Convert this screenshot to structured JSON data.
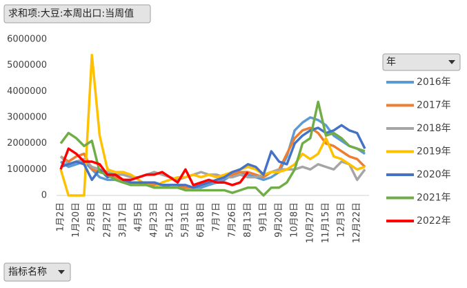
{
  "chart_data": {
    "type": "line",
    "value_field": "求和项:大豆:本周出口:当周值",
    "legend_title": "年",
    "axis_field": "指标名称",
    "categories": [
      "1月2日",
      null,
      "1月20日",
      null,
      "2月8日",
      null,
      "2月27日",
      null,
      "3月17日",
      null,
      "4月5日",
      null,
      "4月23日",
      null,
      "5月12日",
      null,
      "5月31日",
      null,
      "6月18日",
      null,
      "7月7日",
      null,
      "7月26日",
      null,
      "8月13日",
      null,
      "9月1日",
      null,
      "9月20日",
      null,
      "10月8日",
      null,
      "10月27日",
      null,
      "11月15日",
      null,
      "12月3日",
      null,
      "12月22日",
      null
    ],
    "ylim": [
      0,
      6000000
    ],
    "yticks": [
      0,
      1000000,
      2000000,
      3000000,
      4000000,
      5000000,
      6000000
    ],
    "grid": false,
    "legend": "right",
    "series": [
      {
        "name": "2016年",
        "color": "#5b9bd5",
        "values": [
          1300000,
          1100000,
          1200000,
          1300000,
          1000000,
          700000,
          600000,
          600000,
          500000,
          500000,
          500000,
          500000,
          500000,
          400000,
          400000,
          400000,
          300000,
          300000,
          300000,
          400000,
          500000,
          600000,
          800000,
          900000,
          800000,
          700000,
          600000,
          700000,
          900000,
          1500000,
          2500000,
          2800000,
          3000000,
          2900000,
          2700000,
          2300000,
          2100000,
          1900000,
          1800000,
          1600000
        ]
      },
      {
        "name": "2017年",
        "color": "#ed7d31",
        "values": [
          1500000,
          1300000,
          1500000,
          1600000,
          1000000,
          900000,
          800000,
          700000,
          600000,
          500000,
          500000,
          400000,
          400000,
          400000,
          300000,
          300000,
          300000,
          300000,
          400000,
          500000,
          600000,
          700000,
          800000,
          900000,
          900000,
          800000,
          700000,
          900000,
          1000000,
          1600000,
          2200000,
          2500000,
          2600000,
          2400000,
          2000000,
          1900000,
          1700000,
          1500000,
          1400000,
          1100000
        ]
      },
      {
        "name": "2018年",
        "color": "#a5a5a5",
        "values": [
          1500000,
          1200000,
          1300000,
          1400000,
          1100000,
          1000000,
          900000,
          800000,
          800000,
          700000,
          700000,
          800000,
          900000,
          800000,
          700000,
          600000,
          700000,
          800000,
          900000,
          800000,
          800000,
          700000,
          700000,
          800000,
          700000,
          700000,
          800000,
          900000,
          1000000,
          1000000,
          1000000,
          1100000,
          1000000,
          1200000,
          1100000,
          1000000,
          1300000,
          1200000,
          600000,
          1000000
        ]
      },
      {
        "name": "2019年",
        "color": "#ffc000",
        "values": [
          1000000,
          0,
          0,
          0,
          5400000,
          2300000,
          1000000,
          900000,
          900000,
          800000,
          600000,
          400000,
          300000,
          500000,
          600000,
          700000,
          700000,
          800000,
          700000,
          800000,
          700000,
          800000,
          900000,
          1000000,
          1100000,
          1000000,
          800000,
          900000,
          900000,
          1000000,
          1200000,
          1600000,
          1400000,
          1600000,
          2200000,
          1500000,
          1400000,
          1200000,
          1000000,
          1100000
        ]
      },
      {
        "name": "2020年",
        "color": "#4472c4",
        "values": [
          1100000,
          1200000,
          1300000,
          1200000,
          600000,
          1000000,
          700000,
          800000,
          600000,
          500000,
          500000,
          500000,
          500000,
          400000,
          400000,
          400000,
          400000,
          300000,
          400000,
          500000,
          600000,
          700000,
          900000,
          1000000,
          1200000,
          1100000,
          800000,
          1700000,
          1300000,
          1200000,
          2000000,
          2300000,
          2500000,
          2600000,
          2400000,
          2500000,
          2700000,
          2500000,
          2400000,
          1800000
        ]
      },
      {
        "name": "2021年",
        "color": "#70ad47",
        "values": [
          2000000,
          2400000,
          2200000,
          1900000,
          2100000,
          900000,
          800000,
          600000,
          500000,
          400000,
          400000,
          400000,
          300000,
          300000,
          300000,
          300000,
          200000,
          200000,
          200000,
          200000,
          200000,
          200000,
          100000,
          200000,
          300000,
          300000,
          0,
          300000,
          300000,
          500000,
          1000000,
          2000000,
          2200000,
          3600000,
          2300000,
          2400000,
          2200000,
          1900000,
          1800000,
          1700000
        ]
      },
      {
        "name": "2022年",
        "color": "#ff0000",
        "values": [
          1000000,
          1800000,
          1600000,
          1300000,
          1300000,
          1200000,
          800000,
          800000,
          600000,
          600000,
          700000,
          800000,
          800000,
          900000,
          700000,
          500000,
          1000000,
          400000,
          500000,
          600000,
          500000,
          500000,
          400000,
          500000,
          900000,
          null,
          null,
          null,
          null,
          null,
          null,
          null,
          null,
          null,
          null,
          null,
          null,
          null,
          null,
          null
        ]
      }
    ]
  }
}
